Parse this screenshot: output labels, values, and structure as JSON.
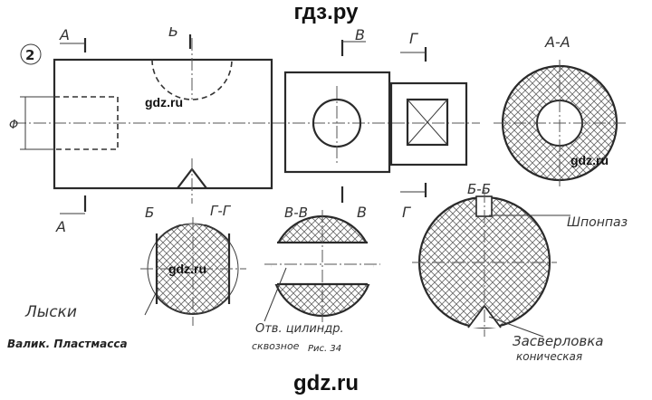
{
  "site": {
    "top_watermark": "гдз.ру",
    "bottom_watermark": "gdz.ru",
    "inline_watermark": "gdz.ru"
  },
  "figure": {
    "number": "2",
    "caption": "Валик. Пластмасса",
    "figure_label": "Рис. 34",
    "phi": "Φ"
  },
  "section_marks": {
    "a": "А",
    "b": "Б",
    "v": "В",
    "g": "Г"
  },
  "sections": {
    "aa": "А-А",
    "bb": "Б-Б",
    "vv": "В-В",
    "gg": "Г-Г"
  },
  "annotations": {
    "flats": "Лыски",
    "hole_line1": "Отв. цилиндр.",
    "hole_line2": "сквозное",
    "keyway": "Шпонпаз",
    "countersink_line1": "Засверловка",
    "countersink_line2": "коническая"
  },
  "colors": {
    "ink": "#2a2a2a",
    "hatch": "#555555",
    "background": "#ffffff"
  }
}
